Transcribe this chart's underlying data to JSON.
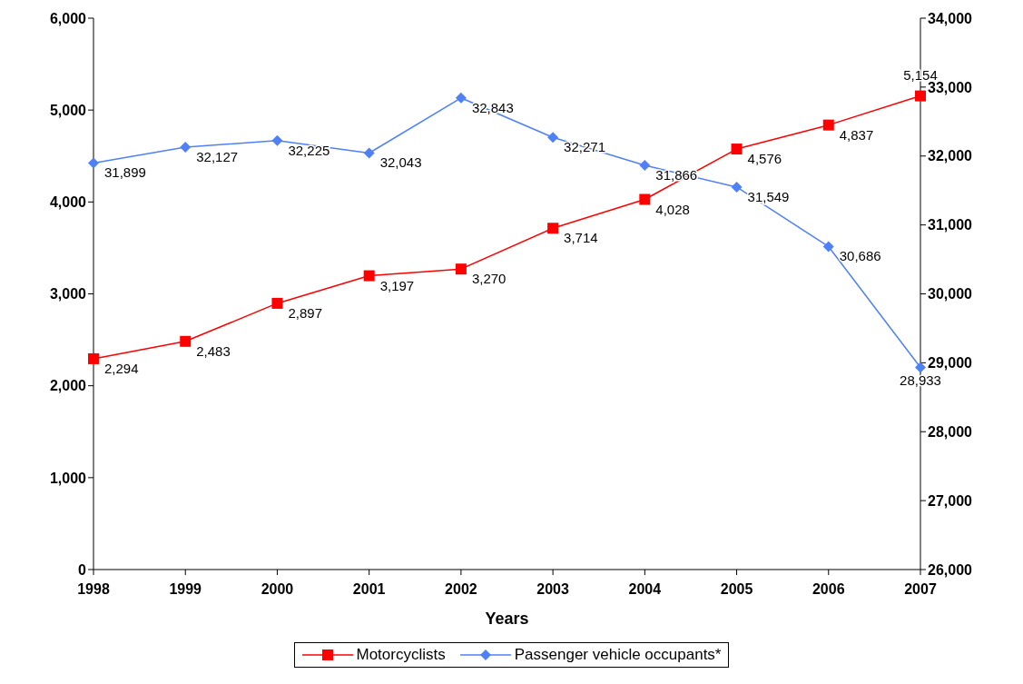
{
  "chart_data": {
    "type": "line",
    "xlabel": "Years",
    "categories": [
      "1998",
      "1999",
      "2000",
      "2001",
      "2002",
      "2003",
      "2004",
      "2005",
      "2006",
      "2007"
    ],
    "series": [
      {
        "name": "Motorcyclists",
        "color": "#ff0000",
        "marker": "square",
        "values": [
          2294,
          2483,
          2897,
          3197,
          3270,
          3714,
          4028,
          4576,
          4837,
          5154
        ],
        "value_labels": [
          "2,294",
          "2,483",
          "2,897",
          "3,197",
          "3,270",
          "3,714",
          "4,028",
          "4,576",
          "4,837",
          "5,154"
        ]
      },
      {
        "name": "Passenger vehicle occupants*",
        "color": "#4f81f5",
        "marker": "diamond",
        "axis": "y2",
        "values": [
          31899,
          32127,
          32225,
          32043,
          32843,
          32271,
          31866,
          31549,
          30686,
          28933
        ],
        "value_labels": [
          "31,899",
          "32,127",
          "32,225",
          "32,043",
          "32,843",
          "32,271",
          "31,866",
          "31,549",
          "30,686",
          "28,933"
        ]
      }
    ],
    "ylim": [
      0,
      6000
    ],
    "yticks": [
      0,
      {
        "value": 1000,
        "label": "1,000"
      },
      {
        "value": 2000,
        "label": "2,000"
      },
      {
        "value": 3000,
        "label": "3,000"
      },
      {
        "value": 4000,
        "label": "4,000"
      },
      {
        "value": 5000,
        "label": "5,000"
      },
      {
        "value": 6000,
        "label": "6,000"
      }
    ],
    "y2lim": [
      26000,
      34000
    ],
    "y2ticks": [
      {
        "value": 26000,
        "label": "26,000"
      },
      {
        "value": 27000,
        "label": "27,000"
      },
      {
        "value": 28000,
        "label": "28,000"
      },
      {
        "value": 29000,
        "label": "29,000"
      },
      {
        "value": 30000,
        "label": "30,000"
      },
      {
        "value": 31000,
        "label": "31,000"
      },
      {
        "value": 32000,
        "label": "32,000"
      },
      {
        "value": 33000,
        "label": "33,000"
      },
      {
        "value": 34000,
        "label": "34,000"
      }
    ],
    "grid": false,
    "legend": "bottom"
  }
}
